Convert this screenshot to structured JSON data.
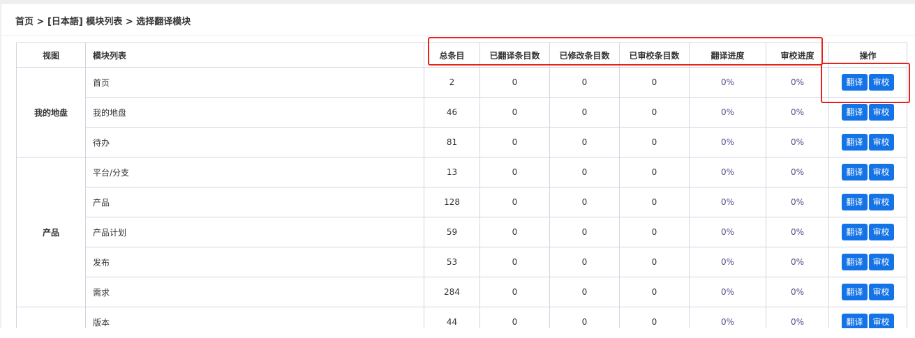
{
  "breadcrumb": "首页 > [日本語] 模块列表 > 选择翻译模块",
  "columns": [
    "视图",
    "模块列表",
    "总条目",
    "已翻译条目数",
    "已修改条目数",
    "已审校条目数",
    "翻译进度",
    "审校进度",
    "操作"
  ],
  "actions": {
    "translate": "翻译",
    "review": "审校"
  },
  "highlight_color": "#e8221b",
  "button_color": "#1473e6",
  "groups": [
    {
      "view": "我的地盘",
      "rows": [
        {
          "module": "首页",
          "total": "2",
          "translated": "0",
          "modified": "0",
          "reviewed": "0",
          "translate_progress": "0%",
          "review_progress": "0%"
        },
        {
          "module": "我的地盘",
          "total": "46",
          "translated": "0",
          "modified": "0",
          "reviewed": "0",
          "translate_progress": "0%",
          "review_progress": "0%"
        },
        {
          "module": "待办",
          "total": "81",
          "translated": "0",
          "modified": "0",
          "reviewed": "0",
          "translate_progress": "0%",
          "review_progress": "0%"
        }
      ]
    },
    {
      "view": "产品",
      "rows": [
        {
          "module": "平台/分支",
          "total": "13",
          "translated": "0",
          "modified": "0",
          "reviewed": "0",
          "translate_progress": "0%",
          "review_progress": "0%"
        },
        {
          "module": "产品",
          "total": "128",
          "translated": "0",
          "modified": "0",
          "reviewed": "0",
          "translate_progress": "0%",
          "review_progress": "0%"
        },
        {
          "module": "产品计划",
          "total": "59",
          "translated": "0",
          "modified": "0",
          "reviewed": "0",
          "translate_progress": "0%",
          "review_progress": "0%"
        },
        {
          "module": "发布",
          "total": "53",
          "translated": "0",
          "modified": "0",
          "reviewed": "0",
          "translate_progress": "0%",
          "review_progress": "0%"
        },
        {
          "module": "需求",
          "total": "284",
          "translated": "0",
          "modified": "0",
          "reviewed": "0",
          "translate_progress": "0%",
          "review_progress": "0%"
        }
      ]
    },
    {
      "view": "",
      "rows": [
        {
          "module": "版本",
          "total": "44",
          "translated": "0",
          "modified": "0",
          "reviewed": "0",
          "translate_progress": "0%",
          "review_progress": "0%"
        }
      ]
    }
  ]
}
